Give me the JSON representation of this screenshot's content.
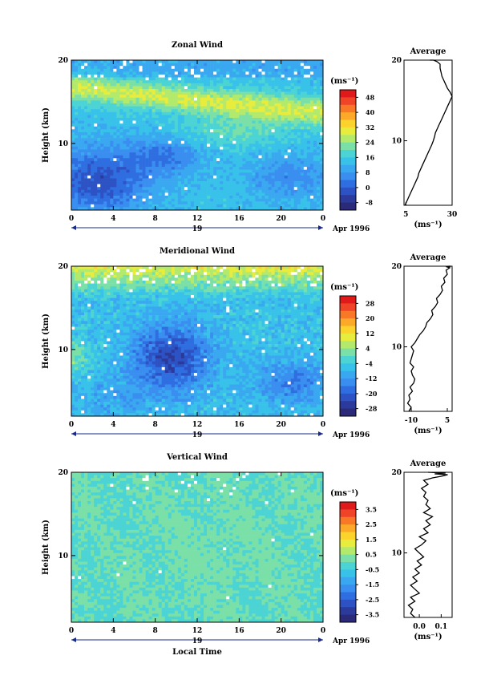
{
  "chart_data": [
    {
      "type": "heatmap",
      "title": "Zonal Wind",
      "ylabel": "Height (km)",
      "yticks": [
        "20",
        "10"
      ],
      "ylim": [
        2,
        20
      ],
      "xticks": [
        "0",
        "4",
        "8",
        "12",
        "16",
        "20",
        "0"
      ],
      "xlim": [
        0,
        24
      ],
      "date_center": "19",
      "date_right": "Apr 1996",
      "colorbar": {
        "units": "(ms⁻¹)",
        "ticks": [
          "48",
          "40",
          "32",
          "24",
          "16",
          "8",
          "0",
          "-8"
        ],
        "range": [
          -12,
          52
        ],
        "colors": [
          "#2a2a78",
          "#2b3a9b",
          "#2d52c4",
          "#2f6ee0",
          "#3a8ef0",
          "#3aa8f0",
          "#38c2ea",
          "#4cd4d4",
          "#7ae0a8",
          "#b4ea6c",
          "#e8ec3c",
          "#fcd22c",
          "#fca828",
          "#f87828",
          "#f04428",
          "#e01a1a"
        ]
      },
      "profile": {
        "title": "Average",
        "yticks": [
          "20",
          "10"
        ],
        "xticks": [
          "5",
          "30"
        ],
        "xlim": [
          4,
          30
        ],
        "xlabel": "(ms⁻¹)",
        "x": [
          4.5,
          5.5,
          6.5,
          7.5,
          8.5,
          9.5,
          10.5,
          11.5,
          12,
          13,
          14,
          15,
          16,
          17,
          18,
          19,
          19.8,
          20.5,
          21,
          22,
          23,
          24,
          25,
          26,
          27,
          28,
          29,
          30,
          29,
          27.5,
          26.5,
          25.5,
          24.5,
          24,
          23.5,
          23.5,
          22,
          21,
          20,
          18.5,
          18
        ],
        "y": [
          2,
          2.5,
          3,
          3.5,
          4,
          4.5,
          5,
          5.5,
          6,
          6.5,
          7,
          7.5,
          8,
          8.5,
          9,
          9.5,
          10,
          10.5,
          11,
          11.5,
          12,
          12.5,
          13,
          13.5,
          14,
          14.5,
          15,
          15.5,
          16,
          16.5,
          17,
          17.5,
          18,
          18.5,
          19,
          19.5,
          19.8,
          19.9,
          20,
          20,
          20
        ]
      }
    },
    {
      "type": "heatmap",
      "title": "Meridional Wind",
      "ylabel": "Height (km)",
      "yticks": [
        "20",
        "10"
      ],
      "ylim": [
        2,
        20
      ],
      "xticks": [
        "0",
        "4",
        "8",
        "12",
        "16",
        "20",
        "0"
      ],
      "xlim": [
        0,
        24
      ],
      "date_center": "19",
      "date_right": "Apr 1996",
      "colorbar": {
        "units": "(ms⁻¹)",
        "ticks": [
          "28",
          "20",
          "12",
          "4",
          "-4",
          "-12",
          "-20",
          "-28"
        ],
        "range": [
          -32,
          32
        ],
        "colors": [
          "#2a2a78",
          "#2b3a9b",
          "#2d52c4",
          "#2f6ee0",
          "#3a8ef0",
          "#3aa8f0",
          "#38c2ea",
          "#4cd4d4",
          "#7ae0a8",
          "#b4ea6c",
          "#e8ec3c",
          "#fcd22c",
          "#fca828",
          "#f87828",
          "#f04428",
          "#e01a1a"
        ]
      },
      "profile": {
        "title": "Average",
        "yticks": [
          "20",
          "10"
        ],
        "xticks": [
          "-10",
          "5"
        ],
        "xlim": [
          -13,
          7
        ],
        "xlabel": "(ms⁻¹)",
        "x": [
          -11,
          -10,
          -11.5,
          -10.5,
          -11,
          -9.5,
          -10.5,
          -9,
          -8.5,
          -9.5,
          -10,
          -9,
          -10.5,
          -10,
          -9.5,
          -9,
          -10,
          -8.5,
          -7.5,
          -6.5,
          -5,
          -4,
          -3.5,
          -2,
          -1,
          -1.5,
          0,
          1,
          0.5,
          2,
          3,
          2.5,
          4,
          3.5,
          5,
          4.5,
          6,
          5,
          6.5,
          5.5,
          6
        ],
        "y": [
          2,
          2.5,
          3,
          3.5,
          4,
          4.5,
          5,
          5.5,
          6,
          6.5,
          7,
          7.5,
          8,
          8.5,
          9,
          9.5,
          10,
          10.5,
          11,
          11.5,
          12,
          12.5,
          13,
          13.5,
          14,
          14.5,
          15,
          15.5,
          16,
          16.5,
          17,
          17.5,
          18,
          18.5,
          19,
          19.5,
          19.8,
          19.9,
          20,
          20,
          20
        ]
      }
    },
    {
      "type": "heatmap",
      "title": "Vertical Wind",
      "ylabel": "Height (km)",
      "yticks": [
        "20",
        "10"
      ],
      "ylim": [
        2,
        20
      ],
      "xticks": [
        "0",
        "4",
        "8",
        "12",
        "16",
        "20",
        "0"
      ],
      "xlim": [
        0,
        24
      ],
      "date_center": "19",
      "date_right": "Apr 1996",
      "xlabel": "Local Time",
      "colorbar": {
        "units": "(ms⁻¹)",
        "ticks": [
          "3.5",
          "2.5",
          "1.5",
          "0.5",
          "-0.5",
          "-1.5",
          "-2.5",
          "-3.5"
        ],
        "range": [
          -4,
          4
        ],
        "colors": [
          "#2a2a78",
          "#2b3a9b",
          "#2d52c4",
          "#2f6ee0",
          "#3a8ef0",
          "#3aa8f0",
          "#38c2ea",
          "#4cd4d4",
          "#7ae0a8",
          "#b4ea6c",
          "#e8ec3c",
          "#fcd22c",
          "#fca828",
          "#f87828",
          "#f04428",
          "#e01a1a"
        ]
      },
      "profile": {
        "title": "Average",
        "yticks": [
          "20",
          "10"
        ],
        "xticks": [
          "0.0",
          "0.1"
        ],
        "xlim": [
          -0.07,
          0.15
        ],
        "xlabel": "(ms⁻¹)",
        "x": [
          -0.02,
          -0.04,
          -0.03,
          -0.05,
          -0.02,
          -0.04,
          0.0,
          -0.02,
          -0.04,
          -0.01,
          -0.03,
          0.0,
          -0.02,
          0.01,
          -0.01,
          0.02,
          0.0,
          -0.02,
          0.01,
          0.03,
          0.0,
          0.04,
          0.02,
          0.05,
          0.03,
          0.06,
          0.02,
          0.05,
          0.03,
          0.04,
          0.02,
          0.03,
          0.01,
          0.04,
          0.02,
          0.06,
          0.1,
          0.13,
          0.07,
          0.12,
          0.04
        ],
        "y": [
          2,
          2.5,
          3,
          3.5,
          4,
          4.5,
          5,
          5.5,
          6,
          6.5,
          7,
          7.5,
          8,
          8.5,
          9,
          9.5,
          10,
          10.5,
          11,
          11.5,
          12,
          12.5,
          13,
          13.5,
          14,
          14.5,
          15,
          15.5,
          16,
          16.5,
          17,
          17.5,
          18,
          18.5,
          19,
          19.3,
          19.5,
          19.7,
          19.8,
          19.9,
          20
        ]
      }
    }
  ]
}
